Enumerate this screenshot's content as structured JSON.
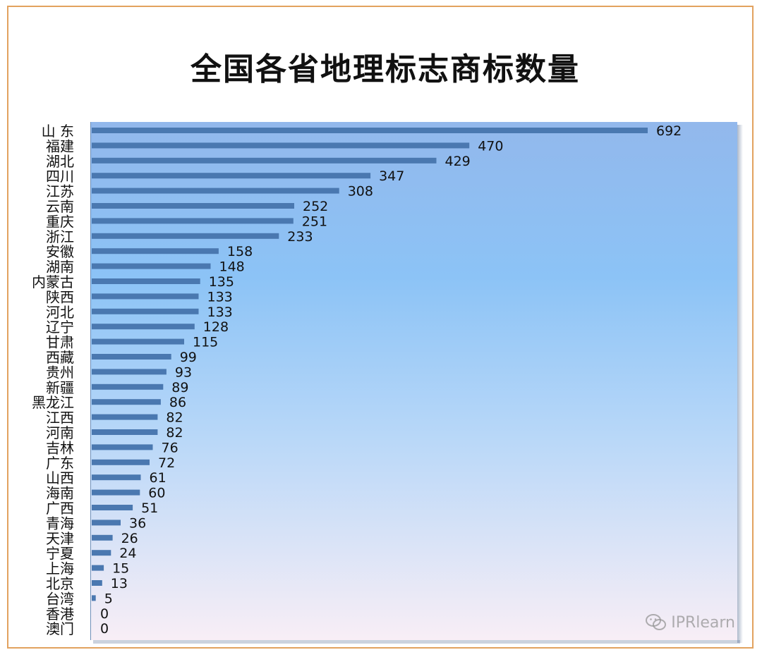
{
  "chart_data": {
    "type": "bar",
    "orientation": "horizontal",
    "title": "全国各省地理标志商标数量",
    "categories": [
      "山 东",
      "福建",
      "湖北",
      "四川",
      "江苏",
      "云南",
      "重庆",
      "浙江",
      "安徽",
      "湖南",
      "内蒙古",
      "陕西",
      "河北",
      "辽宁",
      "甘肃",
      "西藏",
      "贵州",
      "新疆",
      "黑龙江",
      "江西",
      "河南",
      "吉林",
      "广东",
      "山西",
      "海南",
      "广西",
      "青海",
      "天津",
      "宁夏",
      "上海",
      "北京",
      "台湾",
      "香港",
      "澳门"
    ],
    "values": [
      692,
      470,
      429,
      347,
      308,
      252,
      251,
      233,
      158,
      148,
      135,
      133,
      133,
      128,
      115,
      99,
      93,
      89,
      86,
      82,
      82,
      76,
      72,
      61,
      60,
      51,
      36,
      26,
      24,
      15,
      13,
      5,
      0,
      0
    ],
    "xlim": [
      0,
      800
    ],
    "grid": false,
    "legend": "none",
    "data_labels": true,
    "colors": {
      "bar": "#4a78b0",
      "plot_bg_top": "#8fb9ef",
      "plot_bg_mid": "#8ec4f7",
      "plot_bg_bottom": "#f7eef6",
      "frame_border": "#e2a25f"
    }
  },
  "watermark": {
    "text": "IPRlearn",
    "icon": "wechat-icon"
  }
}
